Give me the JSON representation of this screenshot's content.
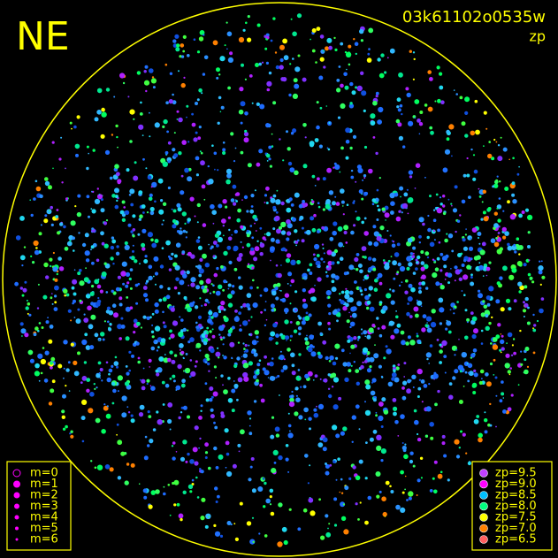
{
  "header": {
    "direction": "NE",
    "image_id": "03k61102o0535w",
    "mode": "zp"
  },
  "magnitude_legend": {
    "color": "#ff00ff",
    "items": [
      "m=0",
      "m=1",
      "m=2",
      "m=3",
      "m=4",
      "m=5",
      "m=6"
    ]
  },
  "zp_legend": {
    "items": [
      {
        "label": "zp=9.5",
        "color": "#c040ff"
      },
      {
        "label": "zp=9.0",
        "color": "#ff00ff"
      },
      {
        "label": "zp=8.5",
        "color": "#00c0ff"
      },
      {
        "label": "zp=8.0",
        "color": "#00ff80"
      },
      {
        "label": "zp=7.5",
        "color": "#ffff00"
      },
      {
        "label": "zp=7.0",
        "color": "#ff8000"
      },
      {
        "label": "zp=6.5",
        "color": "#ff6060"
      }
    ]
  }
}
